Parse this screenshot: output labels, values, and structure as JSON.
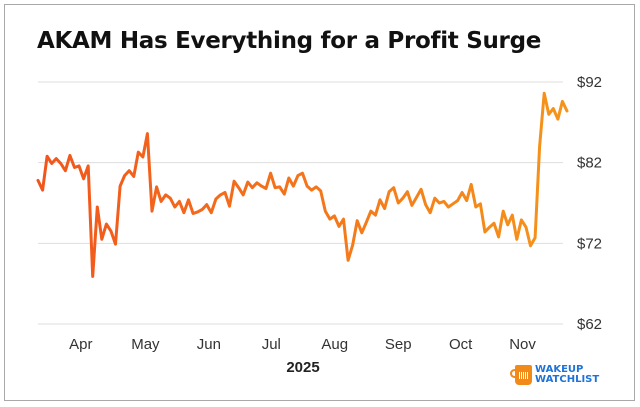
{
  "chart_data": {
    "type": "line",
    "title": "AKAM Has Everything for a Profit Surge",
    "xlabel": "2025",
    "ylabel": "",
    "ylim": [
      62,
      92
    ],
    "yticks": [
      92,
      82,
      72,
      62
    ],
    "ytick_labels": [
      "$92",
      "$82",
      "$72",
      "$62"
    ],
    "xticks": [
      "Apr",
      "May",
      "Jun",
      "Jul",
      "Aug",
      "Sep",
      "Oct",
      "Nov"
    ],
    "grid": true,
    "legend": "none",
    "series": [
      {
        "name": "AKAM",
        "color_start": "#f2551c",
        "color_end": "#f5941a",
        "values": [
          79.8,
          78.6,
          82.8,
          81.9,
          82.5,
          81.9,
          81.0,
          82.9,
          81.4,
          81.6,
          80.0,
          81.6,
          67.9,
          76.5,
          72.5,
          74.4,
          73.5,
          71.9,
          79.1,
          80.4,
          81.0,
          80.3,
          83.3,
          82.7,
          85.6,
          76.0,
          79.0,
          77.2,
          78.0,
          77.6,
          76.5,
          77.2,
          75.8,
          77.4,
          75.7,
          75.9,
          76.2,
          76.8,
          75.8,
          77.5,
          78.0,
          78.3,
          76.6,
          79.7,
          78.9,
          78.0,
          79.6,
          78.9,
          79.5,
          79.1,
          78.8,
          80.7,
          78.9,
          79.0,
          78.1,
          80.1,
          79.1,
          80.4,
          80.7,
          79.1,
          78.6,
          79.0,
          78.5,
          76.0,
          75.0,
          75.4,
          74.1,
          75.0,
          69.9,
          71.8,
          74.8,
          73.3,
          74.6,
          76.0,
          75.5,
          77.4,
          76.3,
          78.4,
          78.9,
          77.0,
          77.6,
          78.4,
          76.7,
          77.7,
          78.7,
          76.8,
          75.8,
          77.6,
          77.0,
          77.2,
          76.5,
          76.9,
          77.3,
          78.3,
          77.3,
          79.3,
          76.5,
          76.9,
          73.4,
          74.0,
          74.5,
          72.8,
          76.0,
          74.3,
          75.5,
          72.5,
          74.9,
          74.0,
          71.7,
          72.7,
          84.0,
          90.6,
          88.0,
          88.7,
          87.4,
          89.6,
          88.4
        ]
      }
    ]
  },
  "branding": {
    "logo_line1": "WAKEUP",
    "logo_line2": "WATCHLIST"
  }
}
